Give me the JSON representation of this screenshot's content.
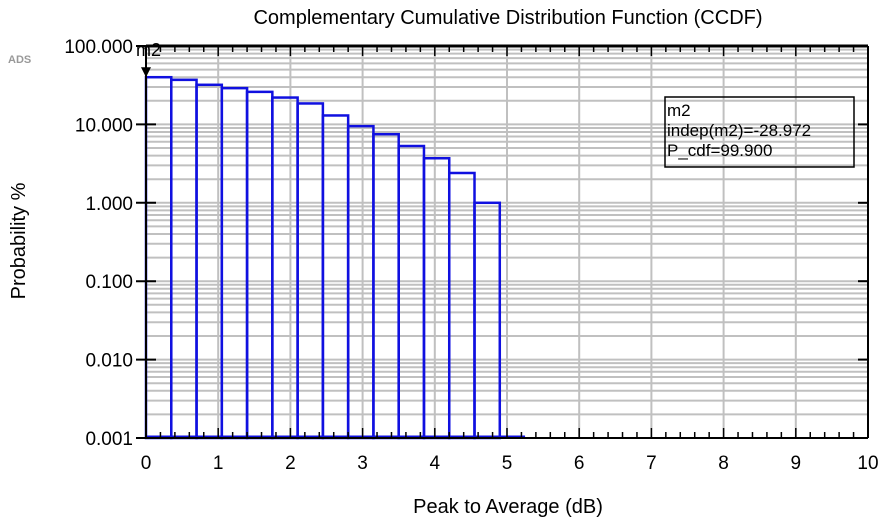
{
  "logo": "ADS",
  "chart_data": {
    "type": "bar",
    "title": "Complementary Cumulative Distribution Function (CCDF)",
    "xlabel": "Peak to Average (dB)",
    "ylabel": "Probability %",
    "xlim": [
      0,
      10
    ],
    "ylim": [
      0.001,
      100
    ],
    "yscale": "log",
    "grid": true,
    "x_ticks": [
      0,
      1,
      2,
      3,
      4,
      5,
      6,
      7,
      8,
      9,
      10
    ],
    "x_tick_labels": [
      "0",
      "1",
      "2",
      "3",
      "4",
      "5",
      "6",
      "7",
      "8",
      "9",
      "10"
    ],
    "y_ticks": [
      0.001,
      0.01,
      0.1,
      1,
      10,
      100
    ],
    "y_tick_labels": [
      "0.001",
      "0.010",
      "0.100",
      "1.000",
      "10.000",
      "100.000"
    ],
    "bar_color": "#1010e0",
    "bars": [
      {
        "x0": 0.0,
        "x1": 0.35,
        "y": 40
      },
      {
        "x0": 0.35,
        "x1": 0.7,
        "y": 37
      },
      {
        "x0": 0.7,
        "x1": 1.05,
        "y": 32
      },
      {
        "x0": 1.05,
        "x1": 1.4,
        "y": 29
      },
      {
        "x0": 1.4,
        "x1": 1.75,
        "y": 26
      },
      {
        "x0": 1.75,
        "x1": 2.1,
        "y": 22
      },
      {
        "x0": 2.1,
        "x1": 2.45,
        "y": 18.5
      },
      {
        "x0": 2.45,
        "x1": 2.8,
        "y": 13
      },
      {
        "x0": 2.8,
        "x1": 3.15,
        "y": 9.5
      },
      {
        "x0": 3.15,
        "x1": 3.5,
        "y": 7.5
      },
      {
        "x0": 3.5,
        "x1": 3.85,
        "y": 5.3
      },
      {
        "x0": 3.85,
        "x1": 4.2,
        "y": 3.7
      },
      {
        "x0": 4.2,
        "x1": 4.55,
        "y": 2.4
      },
      {
        "x0": 4.55,
        "x1": 4.9,
        "y": 1.0
      }
    ],
    "baseline_extent_x": 5.25,
    "marker": {
      "name": "m2",
      "x": 0.0,
      "y": 100,
      "readout": [
        "m2",
        "indep(m2)=-28.972",
        "P_cdf=99.900"
      ]
    }
  }
}
